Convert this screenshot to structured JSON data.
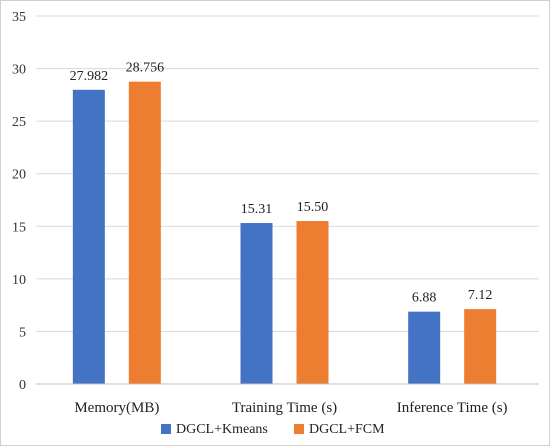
{
  "chart_data": {
    "type": "bar",
    "categories": [
      "Memory(MB)",
      "Training Time (s)",
      "Inference Time (s)"
    ],
    "series": [
      {
        "name": "DGCL+Kmeans",
        "values": [
          27.982,
          15.31,
          6.88
        ],
        "labels": [
          "27.982",
          "15.31",
          "6.88"
        ],
        "color": "#4472c4"
      },
      {
        "name": "DGCL+FCM",
        "values": [
          28.756,
          15.5,
          7.12
        ],
        "labels": [
          "28.756",
          "15.50",
          "7.12"
        ],
        "color": "#ed7d31"
      }
    ],
    "ylim": [
      0,
      35
    ],
    "yticks": [
      0,
      5,
      10,
      15,
      20,
      25,
      30,
      35
    ],
    "grid": true,
    "legend_position": "bottom-center"
  }
}
